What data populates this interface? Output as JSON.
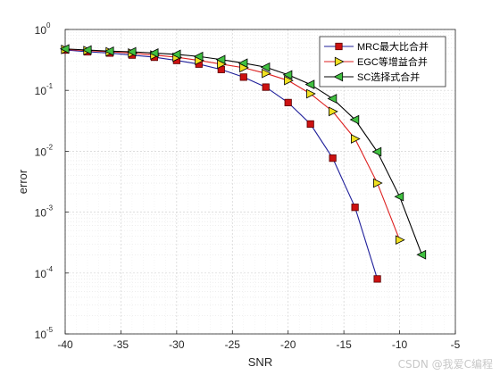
{
  "chart_data": {
    "type": "line",
    "xlabel": "SNR",
    "ylabel": "error",
    "xlim": [
      -40,
      -5
    ],
    "ylim": [
      1e-05,
      1
    ],
    "yscale": "log",
    "grid": true,
    "minor_grid": true,
    "legend_position": "top-right",
    "x_ticks": [
      "-40",
      "-35",
      "-30",
      "-25",
      "-20",
      "-15",
      "-10",
      "-5"
    ],
    "x_tick_values": [
      -40,
      -35,
      -30,
      -25,
      -20,
      -15,
      -10,
      -5
    ],
    "y_ticks": [
      {
        "base": "10",
        "exp": "-5",
        "value": 1e-05
      },
      {
        "base": "10",
        "exp": "-4",
        "value": 0.0001
      },
      {
        "base": "10",
        "exp": "-3",
        "value": 0.001
      },
      {
        "base": "10",
        "exp": "-2",
        "value": 0.01
      },
      {
        "base": "10",
        "exp": "-1",
        "value": 0.1
      },
      {
        "base": "10",
        "exp": "0",
        "value": 1
      }
    ],
    "series": [
      {
        "name": "MRC最大比合并",
        "color": "#1f1f9a",
        "marker": "square",
        "marker_fill": "#cc1111",
        "x": [
          -40,
          -38,
          -36,
          -34,
          -32,
          -30,
          -28,
          -26,
          -24,
          -22,
          -20,
          -18,
          -16,
          -14,
          -12
        ],
        "y": [
          0.46,
          0.43,
          0.41,
          0.38,
          0.35,
          0.31,
          0.27,
          0.22,
          0.165,
          0.113,
          0.063,
          0.028,
          0.0077,
          0.0012,
          8e-05
        ]
      },
      {
        "name": "EGC等增益合并",
        "color": "#dd1f1f",
        "marker": "triangle-right",
        "marker_fill": "#f0e020",
        "x": [
          -40,
          -38,
          -36,
          -34,
          -32,
          -30,
          -28,
          -26,
          -24,
          -22,
          -20,
          -18,
          -16,
          -14,
          -12,
          -10
        ],
        "y": [
          0.47,
          0.45,
          0.43,
          0.41,
          0.38,
          0.35,
          0.31,
          0.27,
          0.235,
          0.19,
          0.145,
          0.088,
          0.045,
          0.016,
          0.003,
          0.00035
        ]
      },
      {
        "name": "SC选择式合并",
        "color": "#000000",
        "marker": "triangle-left",
        "marker_fill": "#40c040",
        "x": [
          -40,
          -38,
          -36,
          -34,
          -32,
          -30,
          -28,
          -26,
          -24,
          -22,
          -20,
          -18,
          -16,
          -14,
          -12,
          -10,
          -8
        ],
        "y": [
          0.48,
          0.46,
          0.44,
          0.43,
          0.41,
          0.39,
          0.36,
          0.32,
          0.28,
          0.24,
          0.18,
          0.125,
          0.073,
          0.033,
          0.0098,
          0.0018,
          0.0002
        ]
      }
    ]
  },
  "watermark": "CSDN @我爱C编程"
}
